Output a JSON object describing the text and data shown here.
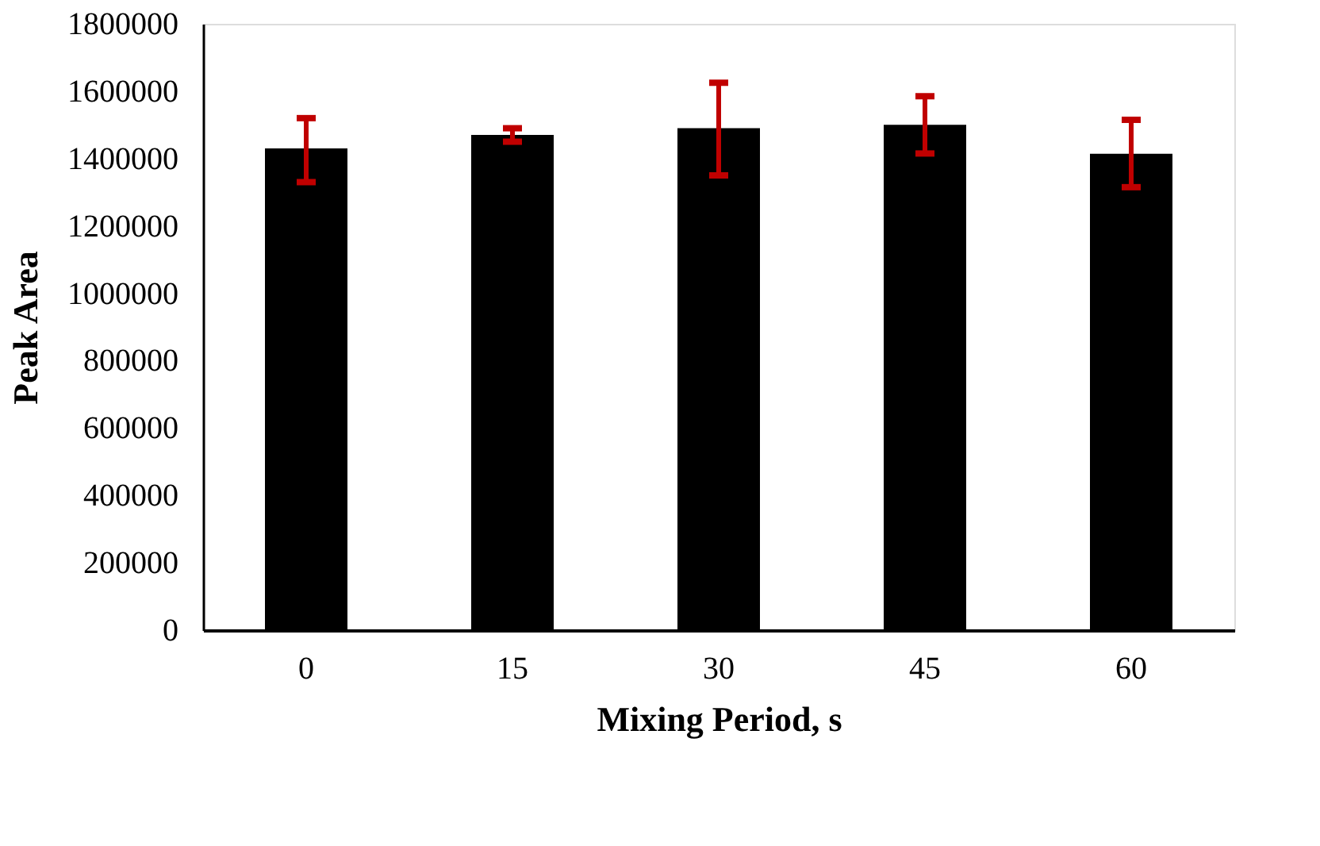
{
  "chart_data": {
    "type": "bar",
    "xlabel": "Mixing Period, s",
    "ylabel": "Peak Area",
    "categories": [
      "0",
      "15",
      "30",
      "45",
      "60"
    ],
    "values": [
      1430000,
      1470000,
      1490000,
      1500000,
      1414000
    ],
    "color": "#000000",
    "errors": [
      [
        1330000,
        1520000
      ],
      [
        1450000,
        1490000
      ],
      [
        1350000,
        1625000
      ],
      [
        1415000,
        1585000
      ],
      [
        1315000,
        1515000
      ]
    ],
    "ylim": [
      0,
      1800000
    ],
    "yticks": [
      0,
      200000,
      400000,
      600000,
      800000,
      1000000,
      1200000,
      1400000,
      1600000,
      1800000
    ],
    "grid": false
  }
}
